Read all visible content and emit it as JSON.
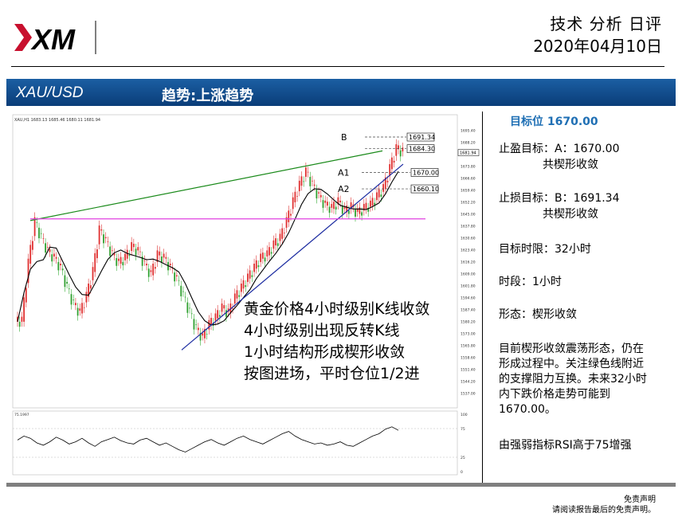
{
  "header": {
    "logo_text": "XM",
    "title": "技术 分析 日评",
    "date": "2020年04月10日"
  },
  "banner": {
    "symbol": "XAU/USD",
    "trend": "趋势:上涨趋势"
  },
  "side_panel": {
    "target_label": "目标位 1670.00",
    "take_profit_label": "止盈目标：A：1670.00",
    "take_profit_note": "共楔形收敛",
    "stop_loss_label": "止损目标：B：1691.34",
    "stop_loss_note": "共楔形收敛",
    "time_limit": "目标时限：32小时",
    "timeframe": "时段：1小时",
    "pattern": "形态：楔形收敛",
    "analysis_lines": [
      "目前楔形收敛震荡形态，仍在",
      "形成过程中。关注绿色线附近",
      "的支撑阻力互换。未来32小时",
      "内下跌价格走势可能到",
      "1670.00。"
    ],
    "rsi_note": "由强弱指标RSI高于75增强"
  },
  "chart_annotation": {
    "lines": [
      "黄金价格4小时级别K线收敛",
      "4小时级别出现反转K线",
      "1小时结构形成楔形收敛",
      "按图进场，平时仓位1/2进"
    ]
  },
  "chart_data": {
    "type": "line",
    "instrument": "XAU/USD",
    "timeframe": "H1",
    "header_text": "XAU,H1  1683.13 1685.46 1680.11 1681.94",
    "ylim": [
      1530,
      1700
    ],
    "y_ticks": [
      "1695.40",
      "1688.20",
      "1681.00",
      "1673.80",
      "1666.60",
      "1659.40",
      "1652.20",
      "1645.00",
      "1637.80",
      "1630.60",
      "1623.40",
      "1616.20",
      "1609.00",
      "1601.80",
      "1594.60",
      "1587.40",
      "1580.20",
      "1573.00",
      "1565.80",
      "1558.60",
      "1551.40",
      "1544.20",
      "1537.00"
    ],
    "last_price": "1681.94",
    "price_levels": [
      {
        "label": "B",
        "value": "1691.34"
      },
      {
        "label": "",
        "value": "1684.30"
      },
      {
        "label": "A1",
        "value": "1670.00"
      },
      {
        "label": "A2",
        "value": "1660.10"
      }
    ],
    "horizontal_line": 1642,
    "close_series": [
      1580,
      1615,
      1640,
      1630,
      1622,
      1618,
      1612,
      1600,
      1590,
      1585,
      1595,
      1610,
      1635,
      1628,
      1620,
      1615,
      1618,
      1625,
      1622,
      1614,
      1608,
      1620,
      1618,
      1612,
      1605,
      1595,
      1585,
      1575,
      1570,
      1578,
      1582,
      1588,
      1585,
      1594,
      1600,
      1606,
      1612,
      1618,
      1620,
      1626,
      1630,
      1640,
      1652,
      1662,
      1670,
      1662,
      1655,
      1650,
      1648,
      1652,
      1646,
      1649,
      1645,
      1648,
      1650,
      1655,
      1660,
      1672,
      1684,
      1682
    ],
    "rsi": {
      "value": "75.1997",
      "levels": [
        "100",
        "75",
        "25",
        "0"
      ],
      "values": [
        55,
        62,
        58,
        50,
        46,
        52,
        60,
        55,
        48,
        52,
        58,
        50,
        44,
        52,
        56,
        60,
        54,
        50,
        48,
        55,
        58,
        52,
        46,
        50,
        44,
        38,
        34,
        40,
        46,
        52,
        56,
        50,
        46,
        52,
        58,
        62,
        56,
        52,
        48,
        54,
        60,
        66,
        70,
        62,
        56,
        52,
        48,
        50,
        46,
        48,
        52,
        46,
        44,
        50,
        56,
        62,
        66,
        74,
        78,
        72
      ]
    }
  }
}
